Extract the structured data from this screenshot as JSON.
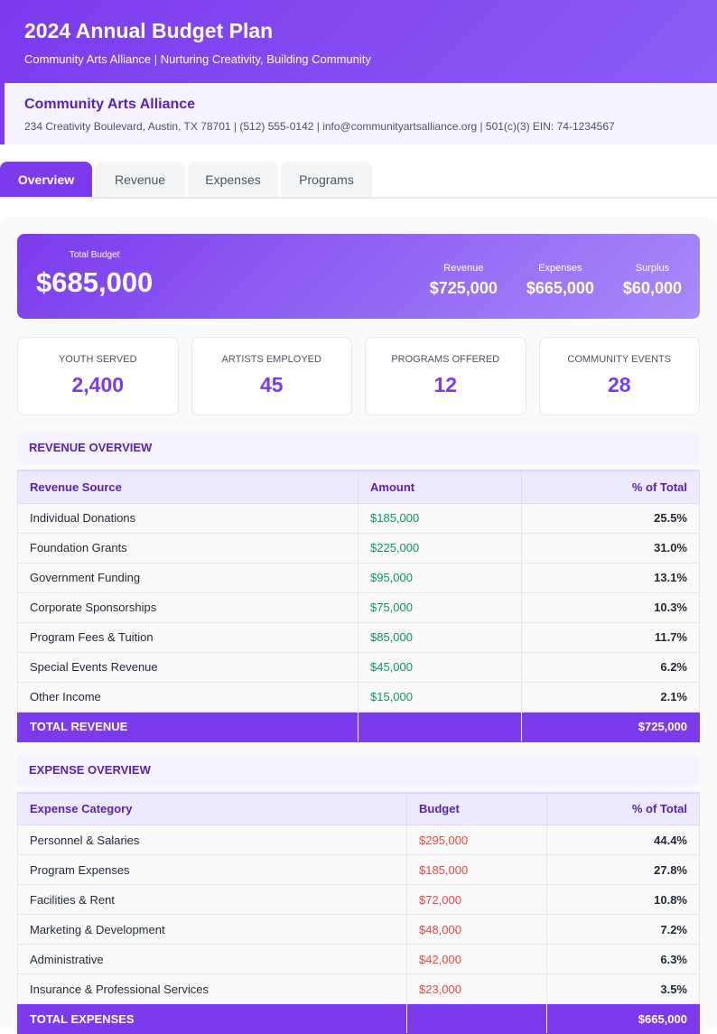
{
  "header": {
    "title": "2024 Annual Budget Plan",
    "subtitle": "Community Arts Alliance | Nurturing Creativity, Building Community"
  },
  "org": {
    "name": "Community Arts Alliance",
    "details": "234 Creativity Boulevard, Austin, TX 78701 | (512) 555-0142 | info@communityartsalliance.org | 501(c)(3) EIN: 74-1234567"
  },
  "tabs": [
    {
      "label": "Overview",
      "active": true
    },
    {
      "label": "Revenue"
    },
    {
      "label": "Expenses"
    },
    {
      "label": "Programs"
    }
  ],
  "summary": {
    "total_label": "Total Budget",
    "total_value": "$685,000",
    "metrics": [
      {
        "label": "Revenue",
        "value": "$725,000"
      },
      {
        "label": "Expenses",
        "value": "$665,000"
      },
      {
        "label": "Surplus",
        "value": "$60,000"
      }
    ]
  },
  "stats": [
    {
      "label": "YOUTH SERVED",
      "value": "2,400"
    },
    {
      "label": "ARTISTS EMPLOYED",
      "value": "45"
    },
    {
      "label": "PROGRAMS OFFERED",
      "value": "12"
    },
    {
      "label": "COMMUNITY EVENTS",
      "value": "28"
    }
  ],
  "revenue": {
    "title": "REVENUE OVERVIEW",
    "headers": [
      "Revenue Source",
      "Amount",
      "% of Total"
    ],
    "rows": [
      [
        "Individual Donations",
        "$185,000",
        "25.5%"
      ],
      [
        "Foundation Grants",
        "$225,000",
        "31.0%"
      ],
      [
        "Government Funding",
        "$95,000",
        "13.1%"
      ],
      [
        "Corporate Sponsorships",
        "$75,000",
        "10.3%"
      ],
      [
        "Program Fees & Tuition",
        "$85,000",
        "11.7%"
      ],
      [
        "Special Events Revenue",
        "$45,000",
        "6.2%"
      ],
      [
        "Other Income",
        "$15,000",
        "2.1%"
      ]
    ],
    "total_label": "TOTAL REVENUE",
    "total_value": "$725,000"
  },
  "expenses": {
    "title": "EXPENSE OVERVIEW",
    "headers": [
      "Expense Category",
      "Budget",
      "% of Total"
    ],
    "rows": [
      [
        "Personnel & Salaries",
        "$295,000",
        "44.4%"
      ],
      [
        "Program Expenses",
        "$185,000",
        "27.8%"
      ],
      [
        "Facilities & Rent",
        "$72,000",
        "10.8%"
      ],
      [
        "Marketing & Development",
        "$48,000",
        "7.2%"
      ],
      [
        "Administrative",
        "$42,000",
        "6.3%"
      ],
      [
        "Insurance & Professional Services",
        "$23,000",
        "3.5%"
      ]
    ],
    "total_label": "TOTAL EXPENSES",
    "total_value": "$665,000"
  },
  "colors": {
    "accent": "#7c3aed",
    "revenue_amount": "#059669",
    "expense_amount": "#ef4444"
  }
}
